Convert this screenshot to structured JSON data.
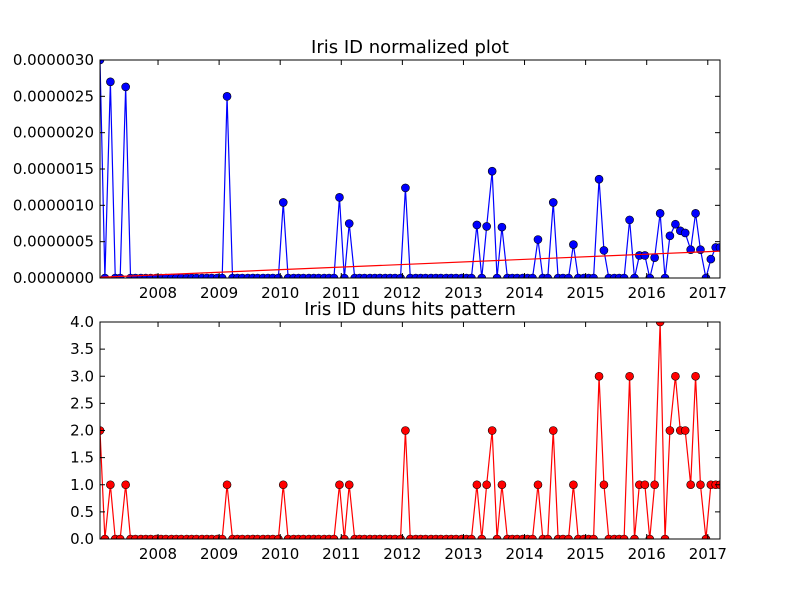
{
  "chart_data": [
    {
      "type": "line",
      "title": "Iris ID normalized plot",
      "xlabel": "",
      "ylabel": "",
      "x_unit": "year",
      "xlim": [
        2007.05,
        2017.2
      ],
      "ylim": [
        0,
        3e-06
      ],
      "x_ticks": [
        2008,
        2009,
        2010,
        2011,
        2012,
        2013,
        2014,
        2015,
        2016,
        2017
      ],
      "y_ticks": [
        0,
        5e-07,
        1e-06,
        1.5e-06,
        2e-06,
        2.5e-06,
        3e-06
      ],
      "y_tick_labels": [
        "0.0000000",
        "0.0000005",
        "0.0000010",
        "0.0000015",
        "0.0000020",
        "0.0000025",
        "0.0000030"
      ],
      "grid": false,
      "series": [
        {
          "color": "#0000ff",
          "marker": "circle",
          "x": [
            2007.05,
            2007.13,
            2007.22,
            2007.3,
            2007.38,
            2007.47,
            2007.55,
            2007.63,
            2007.72,
            2007.8,
            2007.88,
            2007.97,
            2008.05,
            2008.13,
            2008.22,
            2008.3,
            2008.38,
            2008.47,
            2008.55,
            2008.63,
            2008.72,
            2008.8,
            2008.88,
            2008.97,
            2009.05,
            2009.13,
            2009.22,
            2009.3,
            2009.38,
            2009.47,
            2009.55,
            2009.63,
            2009.72,
            2009.8,
            2009.88,
            2009.97,
            2010.05,
            2010.13,
            2010.22,
            2010.3,
            2010.38,
            2010.47,
            2010.55,
            2010.63,
            2010.72,
            2010.8,
            2010.88,
            2010.97,
            2011.05,
            2011.13,
            2011.22,
            2011.3,
            2011.38,
            2011.47,
            2011.55,
            2011.63,
            2011.72,
            2011.8,
            2011.88,
            2011.97,
            2012.05,
            2012.13,
            2012.22,
            2012.3,
            2012.38,
            2012.47,
            2012.55,
            2012.63,
            2012.72,
            2012.8,
            2012.88,
            2012.97,
            2013.05,
            2013.13,
            2013.22,
            2013.3,
            2013.38,
            2013.47,
            2013.55,
            2013.63,
            2013.72,
            2013.8,
            2013.88,
            2013.97,
            2014.05,
            2014.13,
            2014.22,
            2014.3,
            2014.38,
            2014.47,
            2014.55,
            2014.63,
            2014.72,
            2014.8,
            2014.88,
            2014.97,
            2015.05,
            2015.13,
            2015.22,
            2015.3,
            2015.38,
            2015.47,
            2015.55,
            2015.63,
            2015.72,
            2015.8,
            2015.88,
            2015.97,
            2016.05,
            2016.13,
            2016.22,
            2016.3,
            2016.38,
            2016.47,
            2016.55,
            2016.63,
            2016.72,
            2016.8,
            2016.88,
            2016.97,
            2017.05,
            2017.13,
            2017.2
          ],
          "y": [
            3e-06,
            0,
            2.7e-06,
            0,
            0,
            2.63e-06,
            0,
            0,
            0,
            0,
            0,
            0,
            0,
            0,
            0,
            0,
            0,
            0,
            0,
            0,
            0,
            0,
            0,
            0,
            0,
            2.5e-06,
            0,
            0,
            0,
            0,
            0,
            0,
            0,
            0,
            0,
            0,
            1.04e-06,
            0,
            0,
            0,
            0,
            0,
            0,
            0,
            0,
            0,
            0,
            1.11e-06,
            0,
            7.5e-07,
            0,
            0,
            0,
            0,
            0,
            0,
            0,
            0,
            0,
            0,
            1.24e-06,
            0,
            0,
            0,
            0,
            0,
            0,
            0,
            0,
            0,
            0,
            0,
            0,
            0,
            7.3e-07,
            0,
            7.1e-07,
            1.47e-06,
            0,
            7e-07,
            0,
            0,
            0,
            0,
            0,
            0,
            5.3e-07,
            0,
            0,
            1.04e-06,
            0,
            0,
            0,
            4.6e-07,
            0,
            0,
            0,
            0,
            1.36e-06,
            3.8e-07,
            0,
            0,
            0,
            0,
            8e-07,
            0,
            3.1e-07,
            3.1e-07,
            0,
            2.8e-07,
            8.9e-07,
            0,
            5.8e-07,
            7.4e-07,
            6.5e-07,
            6.2e-07,
            3.9e-07,
            8.9e-07,
            3.9e-07,
            0,
            2.6e-07,
            4.2e-07,
            4.2e-07
          ]
        },
        {
          "color": "#ff0000",
          "marker": "none",
          "x": [
            2007.05,
            2017.2
          ],
          "y": [
            1e-08,
            3.7e-07
          ]
        }
      ]
    },
    {
      "type": "line",
      "title": "Iris ID duns hits pattern",
      "xlabel": "",
      "ylabel": "",
      "x_unit": "year",
      "xlim": [
        2007.05,
        2017.2
      ],
      "ylim": [
        0,
        4
      ],
      "x_ticks": [
        2008,
        2009,
        2010,
        2011,
        2012,
        2013,
        2014,
        2015,
        2016,
        2017
      ],
      "y_ticks": [
        0,
        0.5,
        1,
        1.5,
        2,
        2.5,
        3,
        3.5,
        4
      ],
      "y_tick_labels": [
        "0.0",
        "0.5",
        "1.0",
        "1.5",
        "2.0",
        "2.5",
        "3.0",
        "3.5",
        "4.0"
      ],
      "grid": false,
      "series": [
        {
          "color": "#ff0000",
          "marker": "circle",
          "x": [
            2007.05,
            2007.13,
            2007.22,
            2007.3,
            2007.38,
            2007.47,
            2007.55,
            2007.63,
            2007.72,
            2007.8,
            2007.88,
            2007.97,
            2008.05,
            2008.13,
            2008.22,
            2008.3,
            2008.38,
            2008.47,
            2008.55,
            2008.63,
            2008.72,
            2008.8,
            2008.88,
            2008.97,
            2009.05,
            2009.13,
            2009.22,
            2009.3,
            2009.38,
            2009.47,
            2009.55,
            2009.63,
            2009.72,
            2009.8,
            2009.88,
            2009.97,
            2010.05,
            2010.13,
            2010.22,
            2010.3,
            2010.38,
            2010.47,
            2010.55,
            2010.63,
            2010.72,
            2010.8,
            2010.88,
            2010.97,
            2011.05,
            2011.13,
            2011.22,
            2011.3,
            2011.38,
            2011.47,
            2011.55,
            2011.63,
            2011.72,
            2011.8,
            2011.88,
            2011.97,
            2012.05,
            2012.13,
            2012.22,
            2012.3,
            2012.38,
            2012.47,
            2012.55,
            2012.63,
            2012.72,
            2012.8,
            2012.88,
            2012.97,
            2013.05,
            2013.13,
            2013.22,
            2013.3,
            2013.38,
            2013.47,
            2013.55,
            2013.63,
            2013.72,
            2013.8,
            2013.88,
            2013.97,
            2014.05,
            2014.13,
            2014.22,
            2014.3,
            2014.38,
            2014.47,
            2014.55,
            2014.63,
            2014.72,
            2014.8,
            2014.88,
            2014.97,
            2015.05,
            2015.13,
            2015.22,
            2015.3,
            2015.38,
            2015.47,
            2015.55,
            2015.63,
            2015.72,
            2015.8,
            2015.88,
            2015.97,
            2016.05,
            2016.13,
            2016.22,
            2016.3,
            2016.38,
            2016.47,
            2016.55,
            2016.63,
            2016.72,
            2016.8,
            2016.88,
            2016.97,
            2017.05,
            2017.13,
            2017.2
          ],
          "y": [
            2,
            0,
            1,
            0,
            0,
            1,
            0,
            0,
            0,
            0,
            0,
            0,
            0,
            0,
            0,
            0,
            0,
            0,
            0,
            0,
            0,
            0,
            0,
            0,
            0,
            1,
            0,
            0,
            0,
            0,
            0,
            0,
            0,
            0,
            0,
            0,
            1,
            0,
            0,
            0,
            0,
            0,
            0,
            0,
            0,
            0,
            0,
            1,
            0,
            1,
            0,
            0,
            0,
            0,
            0,
            0,
            0,
            0,
            0,
            0,
            2,
            0,
            0,
            0,
            0,
            0,
            0,
            0,
            0,
            0,
            0,
            0,
            0,
            0,
            1,
            0,
            1,
            2,
            0,
            1,
            0,
            0,
            0,
            0,
            0,
            0,
            1,
            0,
            0,
            2,
            0,
            0,
            0,
            1,
            0,
            0,
            0,
            0,
            3,
            1,
            0,
            0,
            0,
            0,
            3,
            0,
            1,
            1,
            0,
            1,
            4,
            0,
            2,
            3,
            2,
            2,
            1,
            3,
            1,
            0,
            1,
            1,
            1
          ]
        }
      ]
    }
  ]
}
